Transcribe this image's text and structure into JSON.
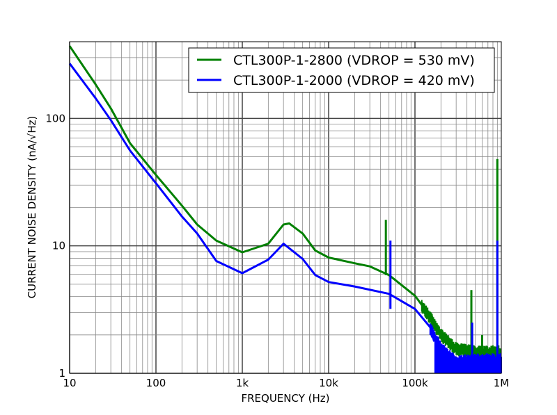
{
  "chart_data": {
    "type": "line",
    "title": "",
    "xlabel": "FREQUENCY (Hz)",
    "ylabel": "CURRENT NOISE DENSITY (nA/√Hz)",
    "xscale": "log",
    "yscale": "log",
    "xlim": [
      10,
      1000000
    ],
    "ylim": [
      1,
      400
    ],
    "grid": true,
    "legend_position": "top-right",
    "x_ticks": [
      10,
      100,
      1000,
      10000,
      100000,
      1000000
    ],
    "x_tick_labels": [
      "10",
      "100",
      "1k",
      "10k",
      "100k",
      "1M"
    ],
    "y_ticks": [
      1,
      10,
      100
    ],
    "y_tick_labels": [
      "1",
      "10",
      "100"
    ],
    "series": [
      {
        "name": "CTL300P-1-2800 (VDROP = 530 mV)",
        "color": "#008000",
        "x": [
          10,
          20,
          30,
          50,
          100,
          200,
          300,
          500,
          1000,
          2000,
          3000,
          3500,
          5000,
          7000,
          10000,
          20000,
          30000,
          50000,
          100000,
          150000,
          200000,
          300000,
          500000,
          1000000
        ],
        "y": [
          370,
          185,
          120,
          64,
          36,
          20.7,
          14.7,
          11,
          8.9,
          10.4,
          14.7,
          15,
          12.5,
          9.2,
          8.1,
          7.3,
          6.9,
          5.9,
          4.06,
          2.8,
          2.04,
          1.59,
          1.5,
          1.5
        ],
        "spikes": [
          {
            "x": 46000,
            "y": 16
          },
          {
            "x": 450000,
            "y": 4.5
          },
          {
            "x": 600000,
            "y": 2.0
          },
          {
            "x": 900000,
            "y": 48
          }
        ]
      },
      {
        "name": "CTL300P-1-2000 (VDROP = 420 mV)",
        "color": "#0000ff",
        "x": [
          10,
          20,
          30,
          50,
          100,
          200,
          300,
          500,
          1000,
          2000,
          3000,
          5000,
          7000,
          10000,
          20000,
          50000,
          100000,
          150000,
          200000,
          300000,
          500000,
          1000000
        ],
        "y": [
          270,
          144,
          97,
          56,
          31,
          17,
          12.5,
          7.6,
          6.1,
          7.8,
          10.4,
          7.9,
          5.9,
          5.2,
          4.8,
          4.2,
          3.2,
          2.3,
          1.6,
          1.25,
          1.3,
          1.3
        ],
        "spikes": [
          {
            "x": 52000,
            "y": 11
          },
          {
            "x": 460000,
            "y": 2.5
          },
          {
            "x": 900000,
            "y": 11
          }
        ]
      }
    ]
  }
}
